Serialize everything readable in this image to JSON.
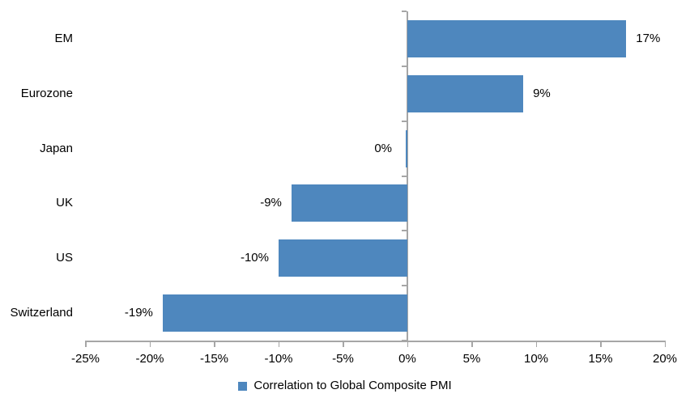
{
  "chart_data": {
    "type": "bar",
    "orientation": "horizontal",
    "title": "",
    "xlabel": "",
    "ylabel": "",
    "categories": [
      "EM",
      "Eurozone",
      "Japan",
      "UK",
      "US",
      "Switzerland"
    ],
    "series": [
      {
        "name": "Correlation to Global Composite PMI",
        "values": [
          17,
          9,
          0,
          -9,
          -10,
          -19
        ]
      }
    ],
    "value_labels": [
      "17%",
      "9%",
      "0%",
      "-9%",
      "-10%",
      "-19%"
    ],
    "x_ticks": [
      -25,
      -20,
      -15,
      -10,
      -5,
      0,
      5,
      10,
      15,
      20
    ],
    "x_tick_labels": [
      "-25%",
      "-20%",
      "-15%",
      "-10%",
      "-5%",
      "0%",
      "5%",
      "10%",
      "15%",
      "20%"
    ],
    "xlim": [
      -25,
      20
    ],
    "grid": false,
    "legend": {
      "label": "Correlation to Global Composite PMI",
      "position": "bottom"
    },
    "colors": {
      "bar": "#4E87BE",
      "axis": "#A6A6A6",
      "text": "#000000",
      "background": "#FFFFFF"
    }
  }
}
